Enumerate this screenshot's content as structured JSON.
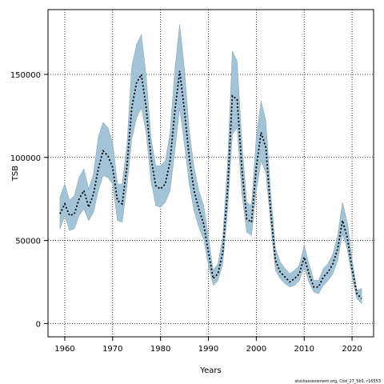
{
  "chart_data": {
    "type": "line",
    "xlabel": "Years",
    "ylabel": "TSB",
    "xlim": [
      1956.5,
      2024.5
    ],
    "ylim": [
      -8000,
      189000
    ],
    "xticks": [
      1960,
      1970,
      1980,
      1990,
      2000,
      2010,
      2020
    ],
    "yticks": [
      0,
      50000,
      100000,
      150000
    ],
    "grid": true,
    "band_color": "#a3c4d6",
    "band_edge_color": "#8aa9b9",
    "line_color": "#000000",
    "footnote": "stockassessment.org, Cod_27_5b1, r16553",
    "x": [
      1959,
      1960,
      1961,
      1962,
      1963,
      1964,
      1965,
      1966,
      1967,
      1968,
      1969,
      1970,
      1971,
      1972,
      1973,
      1974,
      1975,
      1976,
      1977,
      1978,
      1979,
      1980,
      1981,
      1982,
      1983,
      1984,
      1985,
      1986,
      1987,
      1988,
      1989,
      1990,
      1991,
      1992,
      1993,
      1994,
      1995,
      1996,
      1997,
      1998,
      1999,
      2000,
      2001,
      2002,
      2003,
      2004,
      2005,
      2006,
      2007,
      2008,
      2009,
      2010,
      2011,
      2012,
      2013,
      2014,
      2015,
      2016,
      2017,
      2018,
      2019,
      2020,
      2021,
      2022
    ],
    "series": [
      {
        "values": [
          66000,
          72000,
          65000,
          66000,
          75000,
          80000,
          70000,
          78000,
          93000,
          104000,
          101000,
          94000,
          74000,
          72000,
          95000,
          130000,
          145000,
          150000,
          130000,
          100000,
          83000,
          81000,
          84000,
          98000,
          128000,
          152000,
          128000,
          100000,
          80000,
          69000,
          60000,
          43000,
          27000,
          30000,
          43000,
          80000,
          137000,
          135000,
          93000,
          63000,
          61000,
          94000,
          115000,
          106000,
          68000,
          38000,
          31000,
          28000,
          25000,
          27000,
          30000,
          40000,
          30000,
          22000,
          22000,
          28000,
          31000,
          36000,
          45000,
          62000,
          52000,
          33000,
          18000,
          15000
        ]
      }
    ],
    "band": {
      "lower": [
        57000,
        65000,
        56000,
        57000,
        65000,
        69000,
        62000,
        67000,
        80000,
        89000,
        88000,
        84000,
        62000,
        61000,
        83000,
        111000,
        124000,
        130000,
        115000,
        86000,
        71000,
        70000,
        73000,
        80000,
        104000,
        130000,
        108000,
        84000,
        68000,
        58000,
        51000,
        35000,
        23000,
        26000,
        36000,
        68000,
        114000,
        118000,
        78000,
        55000,
        53000,
        80000,
        98000,
        91000,
        60000,
        32000,
        27000,
        24000,
        22000,
        23000,
        26000,
        34000,
        25000,
        19000,
        18000,
        23000,
        26000,
        30000,
        38000,
        54000,
        45000,
        28000,
        15000,
        12000
      ],
      "upper": [
        76000,
        84000,
        74000,
        77000,
        88000,
        93000,
        81000,
        90000,
        112000,
        121000,
        118000,
        109000,
        84000,
        84000,
        108000,
        155000,
        168000,
        174000,
        149000,
        112000,
        95000,
        95000,
        98000,
        115000,
        153000,
        180000,
        153000,
        116000,
        94000,
        80000,
        71000,
        52000,
        32000,
        36000,
        52000,
        96000,
        164000,
        158000,
        109000,
        73000,
        71000,
        112000,
        134000,
        122000,
        79000,
        45000,
        37000,
        33000,
        30000,
        32000,
        35000,
        47000,
        36000,
        26000,
        26000,
        33000,
        36000,
        42000,
        53000,
        73000,
        61000,
        39000,
        20000,
        21000
      ]
    }
  }
}
